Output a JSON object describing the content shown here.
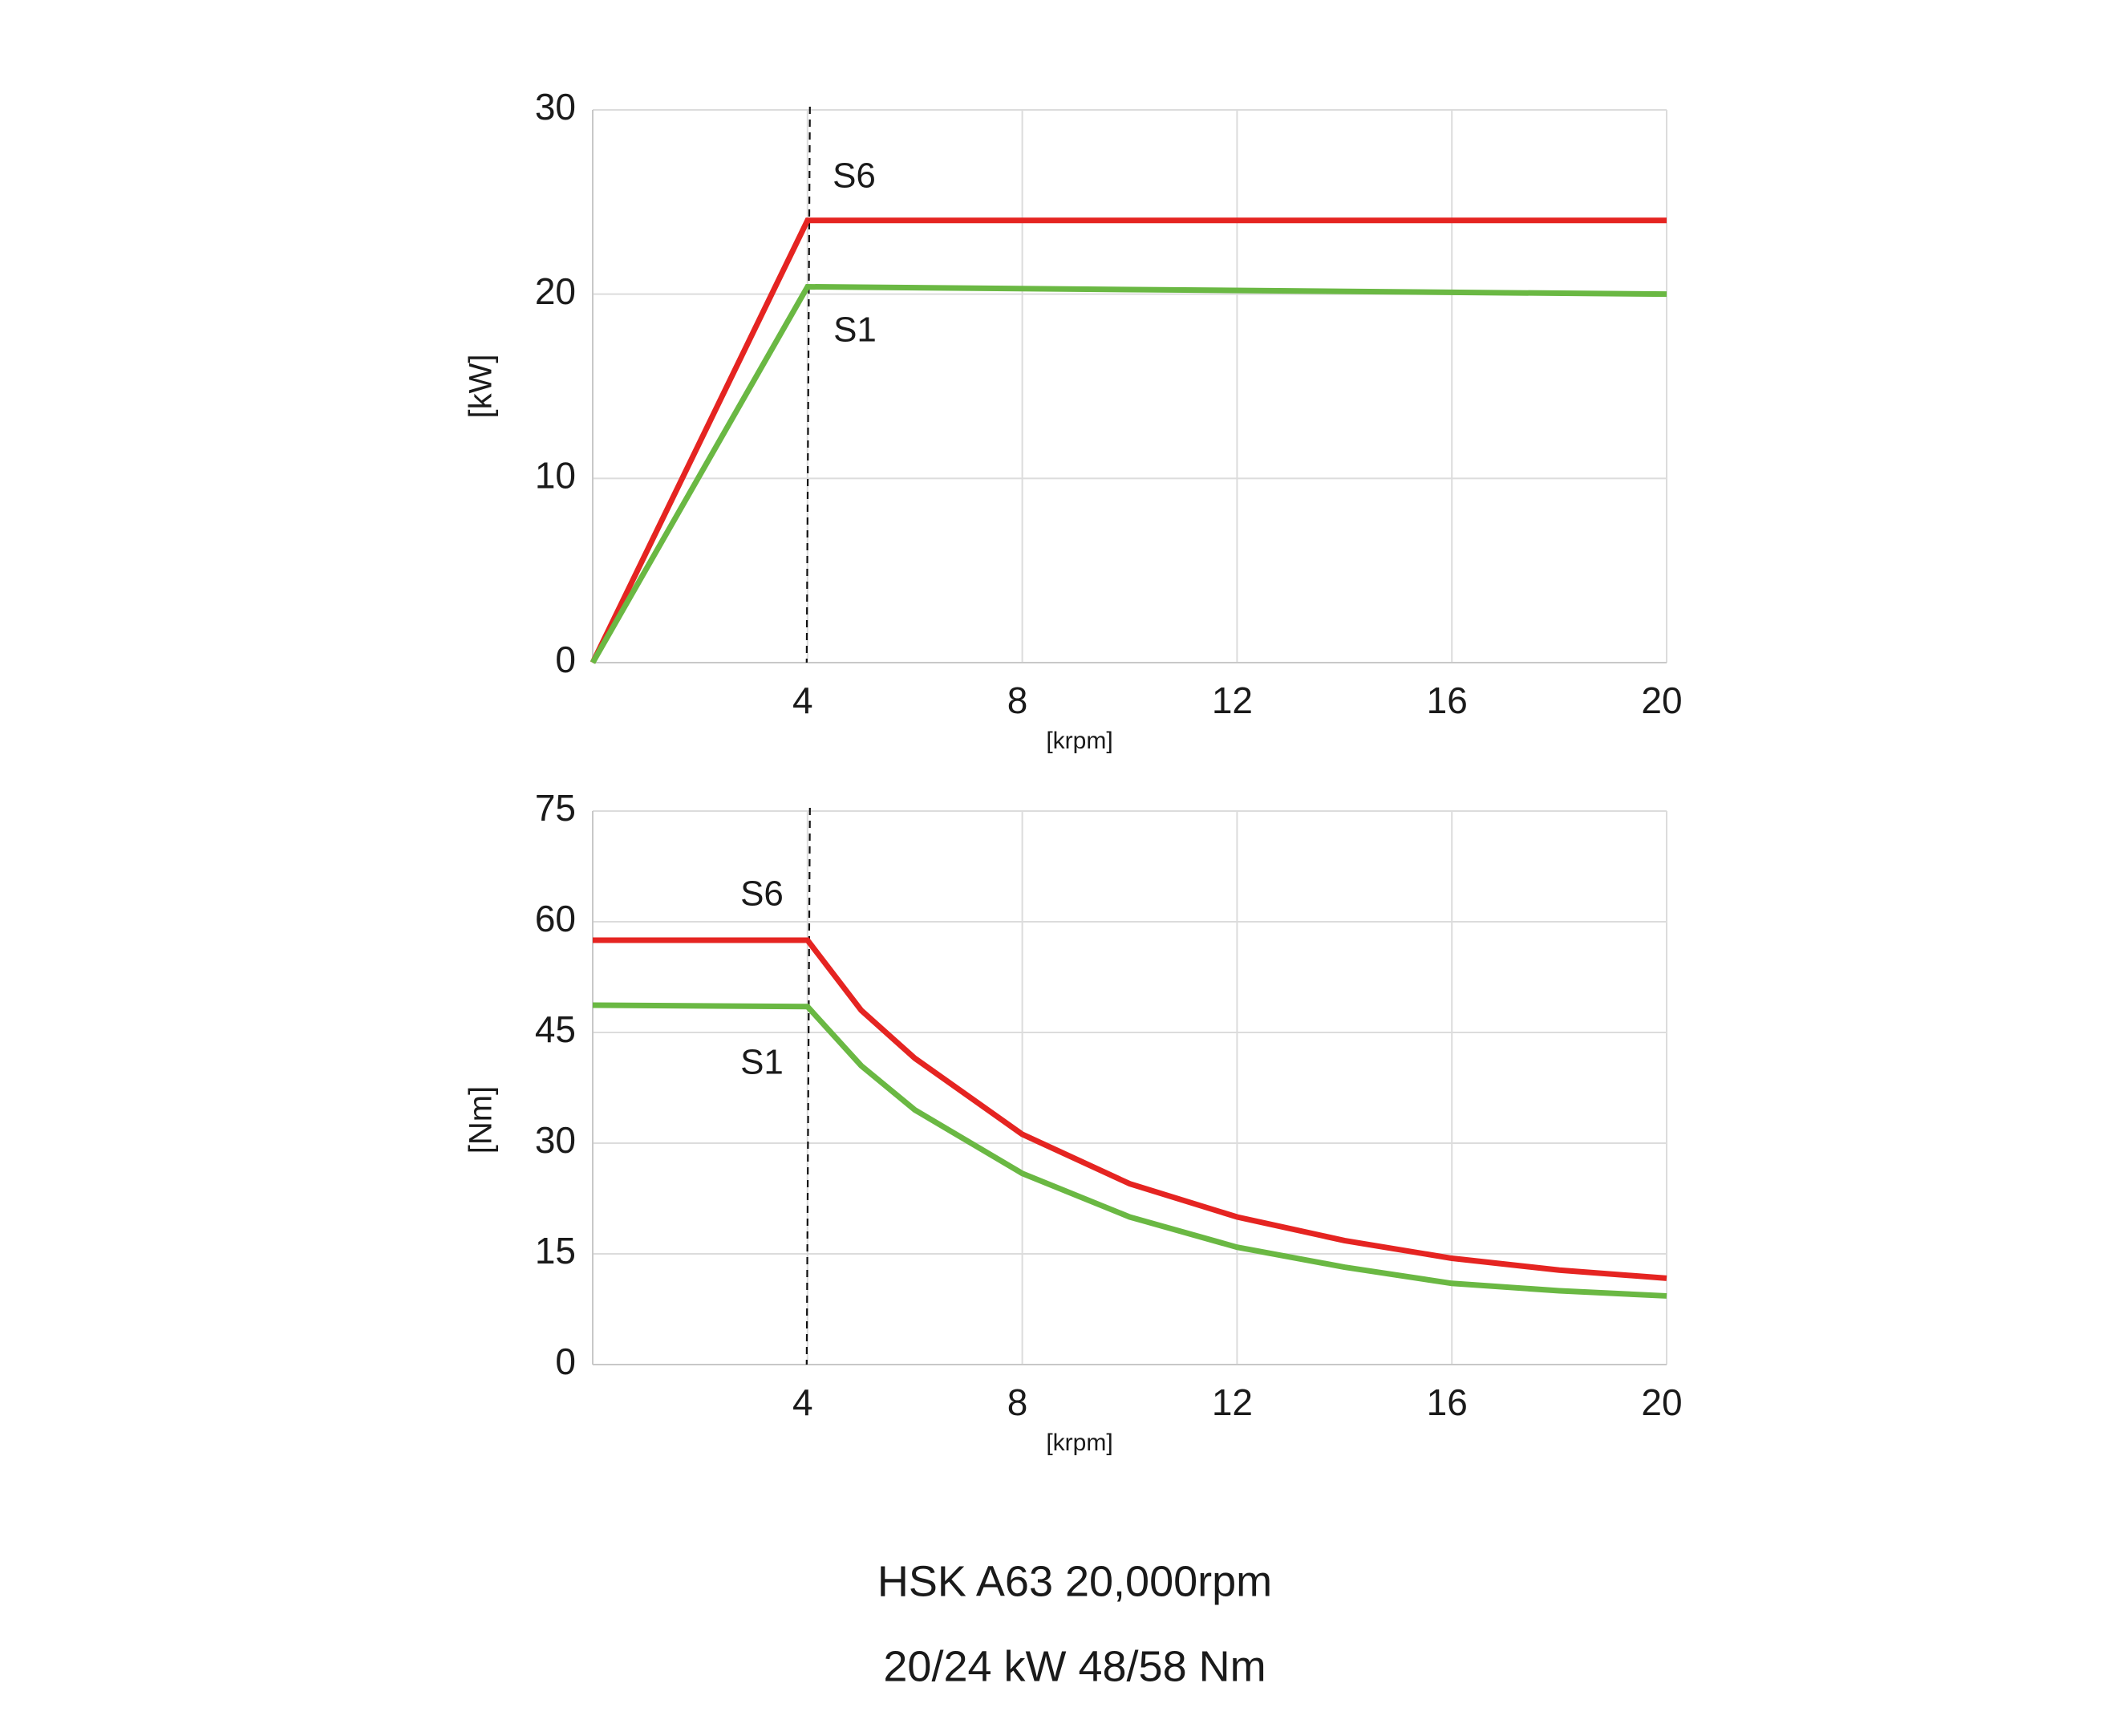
{
  "chart_data": [
    {
      "type": "line",
      "y_label": "[kW]",
      "x_label": "[krpm]",
      "xlim": [
        0,
        20
      ],
      "xticks": [
        4,
        8,
        12,
        16,
        20
      ],
      "ylim": [
        0,
        30
      ],
      "yticks": [
        0,
        10,
        20,
        30
      ],
      "grid": true,
      "marker_x": 4,
      "series": [
        {
          "name": "S6",
          "color": "#e52421",
          "x": [
            0,
            4,
            20
          ],
          "values": [
            0,
            24,
            24
          ]
        },
        {
          "name": "S1",
          "color": "#6ab843",
          "x": [
            0,
            4,
            20
          ],
          "values": [
            0,
            20.4,
            20
          ]
        }
      ]
    },
    {
      "type": "line",
      "y_label": "[Nm]",
      "x_label": "[krpm]",
      "xlim": [
        0,
        20
      ],
      "xticks": [
        4,
        8,
        12,
        16,
        20
      ],
      "ylim": [
        0,
        75
      ],
      "yticks": [
        0,
        15,
        30,
        45,
        60,
        75
      ],
      "grid": true,
      "marker_x": 4,
      "series": [
        {
          "name": "S6",
          "color": "#e52421",
          "x": [
            0,
            4,
            5,
            6,
            8,
            10,
            12,
            14,
            16,
            18,
            20
          ],
          "values": [
            57.5,
            57.5,
            48,
            41.5,
            31.2,
            24.5,
            20,
            16.8,
            14.4,
            12.8,
            11.7
          ]
        },
        {
          "name": "S1",
          "color": "#6ab843",
          "x": [
            0,
            4,
            5,
            6,
            8,
            10,
            12,
            14,
            16,
            18,
            20
          ],
          "values": [
            48.7,
            48.5,
            40.5,
            34.5,
            25.9,
            20,
            15.9,
            13.2,
            11,
            10,
            9.3
          ]
        }
      ]
    }
  ],
  "caption": {
    "line1": "HSK A63 20,000rpm",
    "line2": "20/24 kW  48/58 Nm"
  }
}
